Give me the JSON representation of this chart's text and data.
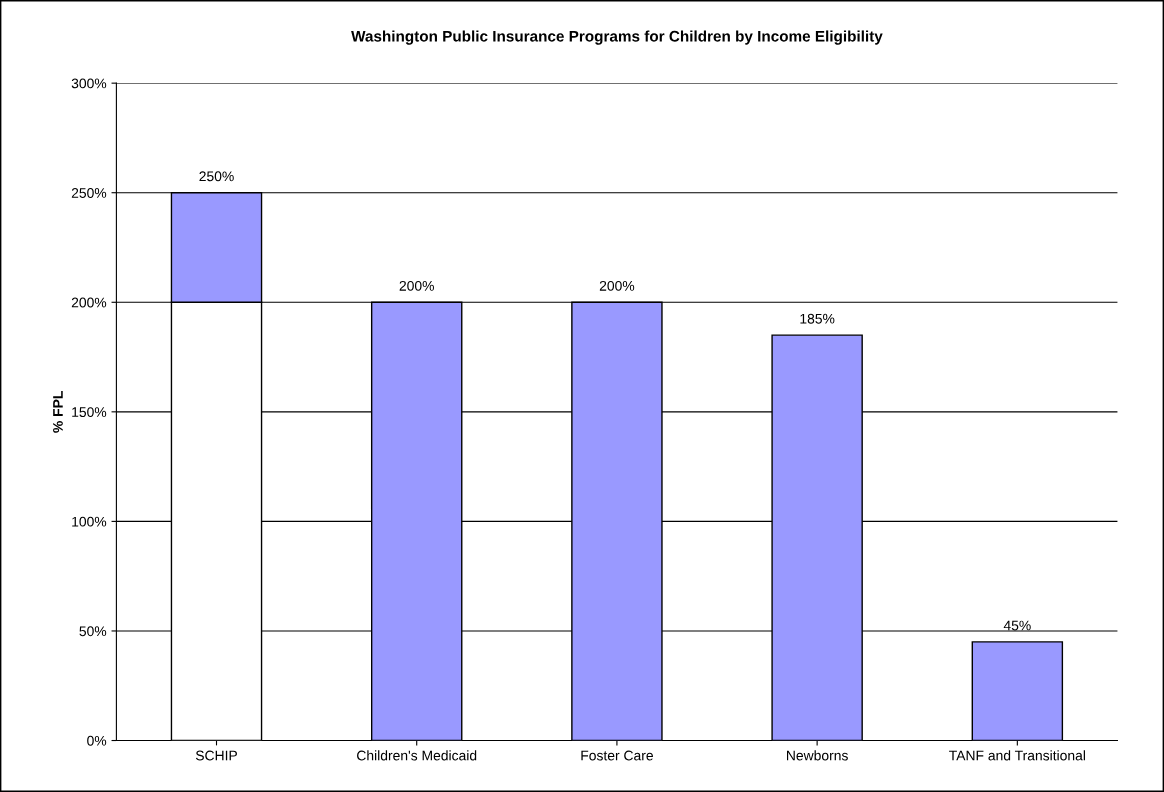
{
  "chart_data": {
    "type": "bar",
    "title": "Washington Public Insurance Programs for Children by Income Eligibility",
    "ylabel": "% FPL",
    "categories": [
      "SCHIP",
      "Children's Medicaid",
      "Foster Care",
      "Newborns",
      "TANF and Transitional"
    ],
    "stacked": true,
    "series": [
      {
        "color": "#ffffff",
        "values": [
          200,
          null,
          null,
          null,
          null
        ]
      },
      {
        "color": "#9999ff",
        "values": [
          50,
          200,
          200,
          185,
          45
        ]
      }
    ],
    "totals": [
      "250%",
      "200%",
      "200%",
      "185%",
      "45%"
    ],
    "ylim": [
      0,
      300
    ],
    "yticks": [
      {
        "value": 0,
        "label": "0%"
      },
      {
        "value": 50,
        "label": "50%"
      },
      {
        "value": 100,
        "label": "100%"
      },
      {
        "value": 150,
        "label": "150%"
      },
      {
        "value": 200,
        "label": "200%"
      },
      {
        "value": 250,
        "label": "250%"
      },
      {
        "value": 300,
        "label": "300%"
      }
    ],
    "grid": "y"
  }
}
